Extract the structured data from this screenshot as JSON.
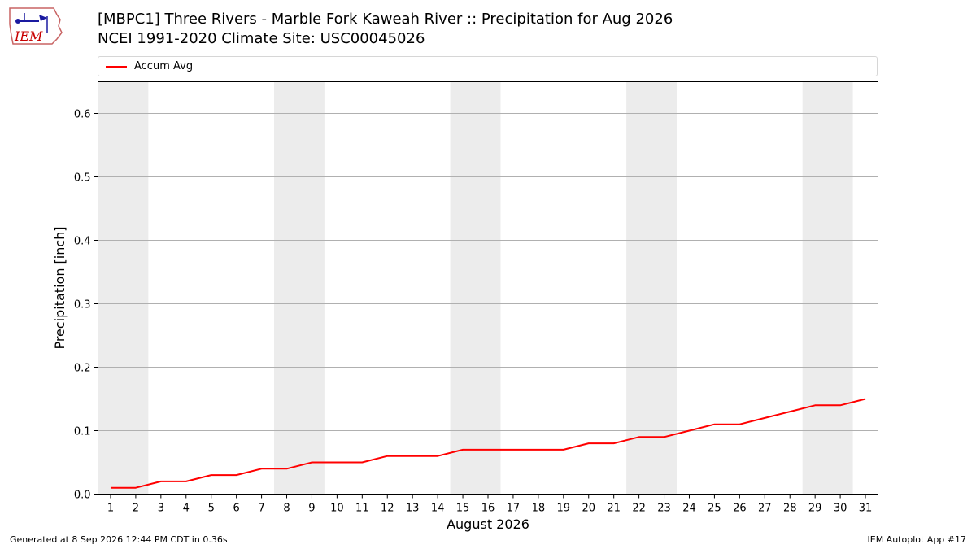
{
  "header": {
    "title_line1": "[MBPC1] Three Rivers - Marble Fork Kaweah River :: Precipitation for Aug 2026",
    "title_line2": "NCEI 1991-2020 Climate Site: USC00045026",
    "logo_text": "IEM"
  },
  "footer": {
    "generated": "Generated at 8 Sep 2026 12:44 PM CDT in 0.36s",
    "app": "IEM Autoplot App #17"
  },
  "colors": {
    "series": "#ff0000",
    "weekend_shade": "#ececec",
    "grid": "#b0b0b0"
  },
  "chart_data": {
    "type": "line",
    "title": "[MBPC1] Three Rivers - Marble Fork Kaweah River :: Precipitation for Aug 2026",
    "subtitle": "NCEI 1991-2020 Climate Site: USC00045026",
    "xlabel": "August 2026",
    "ylabel": "Precipitation [inch]",
    "xlim": [
      0.5,
      31.5
    ],
    "ylim": [
      0,
      0.65
    ],
    "yticks": [
      0.0,
      0.1,
      0.2,
      0.3,
      0.4,
      0.5,
      0.6
    ],
    "ytick_labels": [
      "0.0",
      "0.1",
      "0.2",
      "0.3",
      "0.4",
      "0.5",
      "0.6"
    ],
    "x": [
      1,
      2,
      3,
      4,
      5,
      6,
      7,
      8,
      9,
      10,
      11,
      12,
      13,
      14,
      15,
      16,
      17,
      18,
      19,
      20,
      21,
      22,
      23,
      24,
      25,
      26,
      27,
      28,
      29,
      30,
      31
    ],
    "xtick_labels": [
      "1",
      "2",
      "3",
      "4",
      "5",
      "6",
      "7",
      "8",
      "9",
      "10",
      "11",
      "12",
      "13",
      "14",
      "15",
      "16",
      "17",
      "18",
      "19",
      "20",
      "21",
      "22",
      "23",
      "24",
      "25",
      "26",
      "27",
      "28",
      "29",
      "30",
      "31"
    ],
    "series": [
      {
        "name": "Accum Avg",
        "color": "#ff0000",
        "values": [
          0.01,
          0.01,
          0.02,
          0.02,
          0.03,
          0.03,
          0.04,
          0.04,
          0.05,
          0.05,
          0.05,
          0.06,
          0.06,
          0.06,
          0.07,
          0.07,
          0.07,
          0.07,
          0.07,
          0.08,
          0.08,
          0.09,
          0.09,
          0.1,
          0.11,
          0.11,
          0.12,
          0.13,
          0.14,
          0.14,
          0.15
        ]
      }
    ],
    "weekend_shading": [
      [
        1,
        2
      ],
      [
        8,
        9
      ],
      [
        15,
        16
      ],
      [
        22,
        23
      ],
      [
        29,
        30
      ]
    ],
    "grid": "y",
    "legend": "top"
  }
}
